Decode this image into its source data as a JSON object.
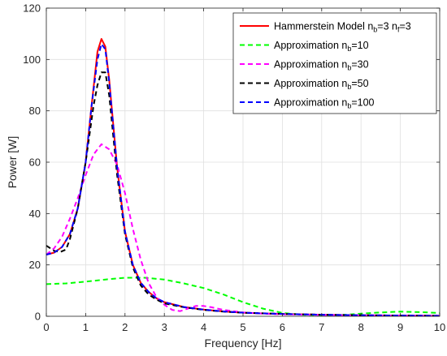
{
  "chart_data": {
    "type": "line",
    "xlabel": "Frequency [Hz]",
    "ylabel": "Power [W]",
    "xlim": [
      0,
      10
    ],
    "ylim": [
      0,
      120
    ],
    "x_ticks": [
      "0",
      "1",
      "2",
      "3",
      "4",
      "5",
      "6",
      "7",
      "8",
      "9",
      "10"
    ],
    "y_ticks": [
      "0",
      "20",
      "40",
      "60",
      "80",
      "100",
      "120"
    ],
    "grid": true,
    "legend_position": "top-right",
    "series": [
      {
        "name": "Hammerstein Model n_b=3 n_f=3",
        "legend": {
          "main": "Hammerstein Model n",
          "sub1": "b",
          "mid": "=3 n",
          "sub2": "f",
          "tail": "=3"
        },
        "color": "#ff0000",
        "style": "solid",
        "points": [
          [
            0,
            24
          ],
          [
            0.2,
            24.8
          ],
          [
            0.4,
            27
          ],
          [
            0.6,
            32
          ],
          [
            0.8,
            42
          ],
          [
            1.0,
            60
          ],
          [
            1.15,
            82
          ],
          [
            1.3,
            103
          ],
          [
            1.4,
            108
          ],
          [
            1.5,
            105
          ],
          [
            1.6,
            92
          ],
          [
            1.8,
            58
          ],
          [
            2.0,
            33
          ],
          [
            2.2,
            20
          ],
          [
            2.4,
            13
          ],
          [
            2.6,
            9.5
          ],
          [
            2.8,
            7
          ],
          [
            3.0,
            5.5
          ],
          [
            3.5,
            3.6
          ],
          [
            4.0,
            2.6
          ],
          [
            4.5,
            1.9
          ],
          [
            5.0,
            1.4
          ],
          [
            5.5,
            1.1
          ],
          [
            6.0,
            0.9
          ],
          [
            7.0,
            0.6
          ],
          [
            8.0,
            0.4
          ],
          [
            9.0,
            0.3
          ],
          [
            10.0,
            0.2
          ]
        ]
      },
      {
        "name": "Approximation n_b=10",
        "legend": {
          "main": "Approximation n",
          "sub1": "b",
          "tail": "=10"
        },
        "color": "#00ff00",
        "style": "dashed",
        "points": [
          [
            0,
            12.5
          ],
          [
            0.5,
            12.8
          ],
          [
            1.0,
            13.5
          ],
          [
            1.5,
            14.3
          ],
          [
            2.0,
            15
          ],
          [
            2.5,
            15
          ],
          [
            3.0,
            14.3
          ],
          [
            3.5,
            12.8
          ],
          [
            4.0,
            11
          ],
          [
            4.5,
            8.5
          ],
          [
            5.0,
            5.5
          ],
          [
            5.5,
            3
          ],
          [
            6.0,
            1.3
          ],
          [
            6.5,
            0.6
          ],
          [
            7.0,
            0.4
          ],
          [
            7.5,
            0.5
          ],
          [
            8.0,
            1
          ],
          [
            8.5,
            1.5
          ],
          [
            9.0,
            1.8
          ],
          [
            9.5,
            1.6
          ],
          [
            10.0,
            1.3
          ]
        ]
      },
      {
        "name": "Approximation n_b=30",
        "legend": {
          "main": "Approximation n",
          "sub1": "b",
          "tail": "=30"
        },
        "color": "#ff00ff",
        "style": "dashed",
        "points": [
          [
            0,
            24
          ],
          [
            0.2,
            26.5
          ],
          [
            0.4,
            31
          ],
          [
            0.6,
            38
          ],
          [
            0.8,
            46
          ],
          [
            1.0,
            55
          ],
          [
            1.2,
            63
          ],
          [
            1.4,
            67
          ],
          [
            1.6,
            65
          ],
          [
            1.8,
            59
          ],
          [
            2.0,
            48
          ],
          [
            2.2,
            34
          ],
          [
            2.4,
            22
          ],
          [
            2.6,
            13
          ],
          [
            2.8,
            7.5
          ],
          [
            3.0,
            4.5
          ],
          [
            3.2,
            2.5
          ],
          [
            3.4,
            2
          ],
          [
            3.6,
            3
          ],
          [
            3.8,
            4
          ],
          [
            4.0,
            4
          ],
          [
            4.2,
            3.5
          ],
          [
            4.5,
            2.5
          ],
          [
            5.0,
            1.5
          ],
          [
            5.5,
            1
          ],
          [
            6.0,
            0.8
          ],
          [
            7.0,
            0.5
          ],
          [
            8.0,
            0.4
          ],
          [
            9.0,
            0.3
          ],
          [
            10.0,
            0.2
          ]
        ]
      },
      {
        "name": "Approximation n_b=50",
        "legend": {
          "main": "Approximation n",
          "sub1": "b",
          "tail": "=50"
        },
        "color": "#000000",
        "style": "dashed",
        "points": [
          [
            0,
            27.5
          ],
          [
            0.1,
            26.5
          ],
          [
            0.2,
            25.5
          ],
          [
            0.35,
            25
          ],
          [
            0.5,
            26
          ],
          [
            0.6,
            30
          ],
          [
            0.8,
            42
          ],
          [
            1.0,
            60
          ],
          [
            1.2,
            82
          ],
          [
            1.3,
            90
          ],
          [
            1.4,
            95
          ],
          [
            1.5,
            95
          ],
          [
            1.6,
            86
          ],
          [
            1.8,
            55
          ],
          [
            2.0,
            32
          ],
          [
            2.2,
            19
          ],
          [
            2.4,
            12
          ],
          [
            2.6,
            8.5
          ],
          [
            2.8,
            6.5
          ],
          [
            3.0,
            5
          ],
          [
            3.5,
            3.5
          ],
          [
            4.0,
            2.5
          ],
          [
            4.5,
            1.8
          ],
          [
            5.0,
            1.4
          ],
          [
            6.0,
            0.9
          ],
          [
            7.0,
            0.6
          ],
          [
            8.0,
            0.4
          ],
          [
            9.0,
            0.3
          ],
          [
            10.0,
            0.2
          ]
        ]
      },
      {
        "name": "Approximation n_b=100",
        "legend": {
          "main": "Approximation n",
          "sub1": "b",
          "tail": "=100"
        },
        "color": "#0000ff",
        "style": "dashed",
        "points": [
          [
            0,
            24
          ],
          [
            0.2,
            24.8
          ],
          [
            0.4,
            27
          ],
          [
            0.6,
            32
          ],
          [
            0.8,
            42
          ],
          [
            1.0,
            60
          ],
          [
            1.15,
            82
          ],
          [
            1.3,
            100
          ],
          [
            1.4,
            106
          ],
          [
            1.5,
            104
          ],
          [
            1.6,
            91
          ],
          [
            1.8,
            58
          ],
          [
            2.0,
            33
          ],
          [
            2.2,
            20
          ],
          [
            2.4,
            13
          ],
          [
            2.6,
            9.5
          ],
          [
            2.8,
            7
          ],
          [
            3.0,
            5.5
          ],
          [
            3.5,
            3.6
          ],
          [
            4.0,
            2.6
          ],
          [
            4.5,
            1.9
          ],
          [
            5.0,
            1.4
          ],
          [
            5.5,
            1.1
          ],
          [
            6.0,
            0.9
          ],
          [
            7.0,
            0.6
          ],
          [
            8.0,
            0.4
          ],
          [
            9.0,
            0.3
          ],
          [
            10.0,
            0.2
          ]
        ]
      }
    ]
  }
}
